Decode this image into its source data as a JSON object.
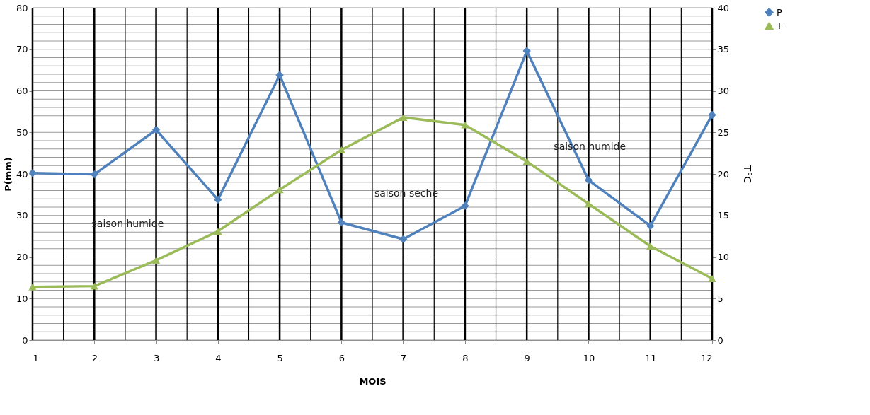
{
  "chart_data": {
    "type": "line",
    "xlabel": "MOIS",
    "ylabel": "P(mm)",
    "y2label": "T°C",
    "x": [
      1,
      2,
      3,
      4,
      5,
      6,
      7,
      8,
      9,
      10,
      11,
      12
    ],
    "series": [
      {
        "name": "P",
        "color": "#4f81bd",
        "marker": "diamond",
        "values": [
          40.2,
          39.9,
          50.6,
          33.8,
          63.8,
          28.3,
          24.3,
          32.3,
          69.6,
          38.5,
          27.5,
          54.2
        ]
      },
      {
        "name": "T",
        "color": "#9bbb59",
        "marker": "triangle",
        "axis": "y2",
        "values": [
          6.4,
          6.5,
          9.6,
          13.1,
          18.1,
          22.9,
          26.8,
          25.9,
          21.5,
          16.4,
          11.3,
          7.4
        ]
      }
    ],
    "xlim": [
      1,
      12
    ],
    "xticks": [
      1,
      {
        "value": 1.5,
        "label": null
      },
      2,
      {
        "value": 2.5,
        "label": null
      },
      3,
      {
        "value": 3.5,
        "label": null
      },
      4,
      {
        "value": 4.5,
        "label": null
      },
      5,
      {
        "value": 5.5,
        "label": null
      },
      6,
      {
        "value": 6.5,
        "label": null
      },
      7,
      {
        "value": 7.5,
        "label": null
      },
      8,
      {
        "value": 8.5,
        "label": null
      },
      9,
      {
        "value": 9.5,
        "label": null
      },
      10,
      {
        "value": 10.5,
        "label": null
      },
      11,
      {
        "value": 11.5,
        "label": null
      },
      12
    ],
    "ylim": [
      0,
      80
    ],
    "yticks": [
      0,
      {
        "value": 2,
        "label": null
      },
      {
        "value": 4,
        "label": null
      },
      {
        "value": 6,
        "label": null
      },
      {
        "value": 8,
        "label": null
      },
      10,
      {
        "value": 12,
        "label": null
      },
      {
        "value": 14,
        "label": null
      },
      {
        "value": 16,
        "label": null
      },
      {
        "value": 18,
        "label": null
      },
      20,
      {
        "value": 22,
        "label": null
      },
      {
        "value": 24,
        "label": null
      },
      {
        "value": 26,
        "label": null
      },
      {
        "value": 28,
        "label": null
      },
      30,
      {
        "value": 32,
        "label": null
      },
      {
        "value": 34,
        "label": null
      },
      {
        "value": 36,
        "label": null
      },
      {
        "value": 38,
        "label": null
      },
      40,
      {
        "value": 42,
        "label": null
      },
      {
        "value": 44,
        "label": null
      },
      {
        "value": 46,
        "label": null
      },
      {
        "value": 48,
        "label": null
      },
      50,
      {
        "value": 52,
        "label": null
      },
      {
        "value": 54,
        "label": null
      },
      {
        "value": 56,
        "label": null
      },
      {
        "value": 58,
        "label": null
      },
      60,
      {
        "value": 62,
        "label": null
      },
      {
        "value": 64,
        "label": null
      },
      {
        "value": 66,
        "label": null
      },
      {
        "value": 68,
        "label": null
      },
      70,
      {
        "value": 72,
        "label": null
      },
      {
        "value": 74,
        "label": null
      },
      {
        "value": 76,
        "label": null
      },
      {
        "value": 78,
        "label": null
      },
      80
    ],
    "y2lim": [
      0,
      40
    ],
    "y2ticks": [
      0,
      5,
      10,
      15,
      20,
      25,
      30,
      35,
      40
    ],
    "grid": true,
    "legend": "right",
    "line_style": "solid",
    "annotations": [
      "saison humide",
      "saison seche",
      "saison humide"
    ]
  }
}
